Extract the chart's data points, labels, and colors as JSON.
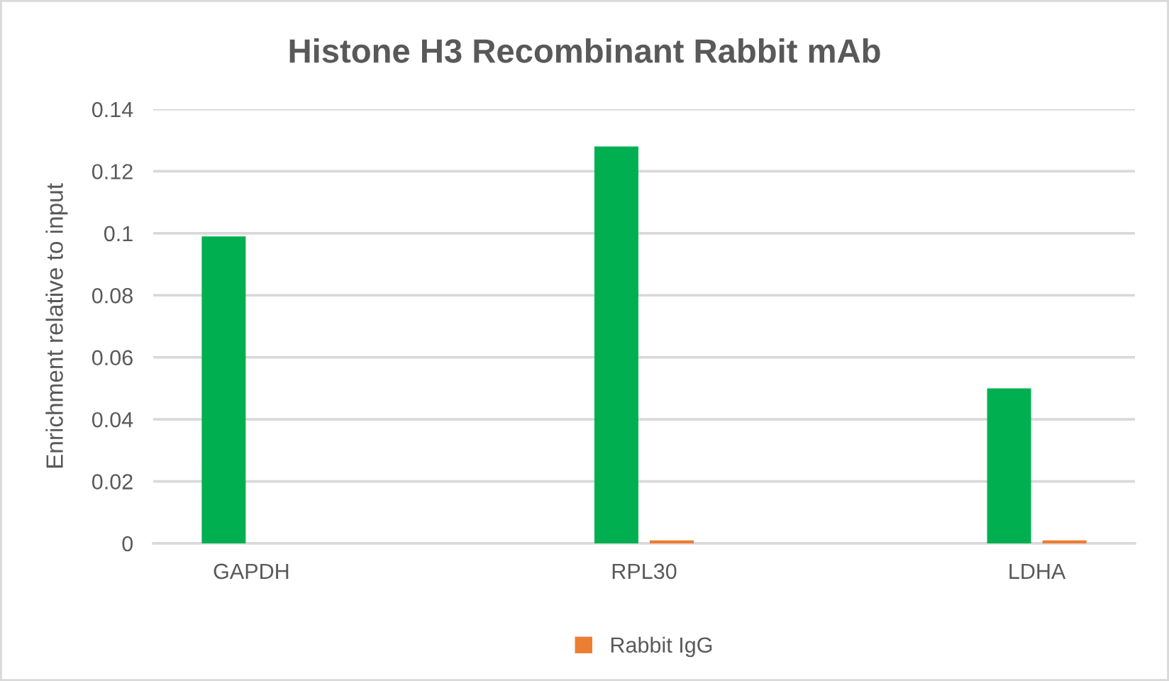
{
  "chart_data": {
    "type": "bar",
    "title": "Histone H3 Recombinant Rabbit mAb",
    "ylabel": "Enrichment relative to input",
    "categories": [
      "GAPDH",
      "RPL30",
      "LDHA"
    ],
    "series": [
      {
        "color": "#00b050",
        "values": [
          0.099,
          0.128,
          0.05
        ]
      },
      {
        "name": "Rabbit IgG",
        "color": "#ed7d31",
        "values": [
          0,
          0.001,
          0.001
        ]
      }
    ],
    "ylim": [
      0,
      0.14
    ],
    "yticks": [
      0,
      0.02,
      0.04,
      0.06,
      0.08,
      0.1,
      0.12,
      0.14
    ],
    "grid": "y",
    "legend": "bottom"
  }
}
